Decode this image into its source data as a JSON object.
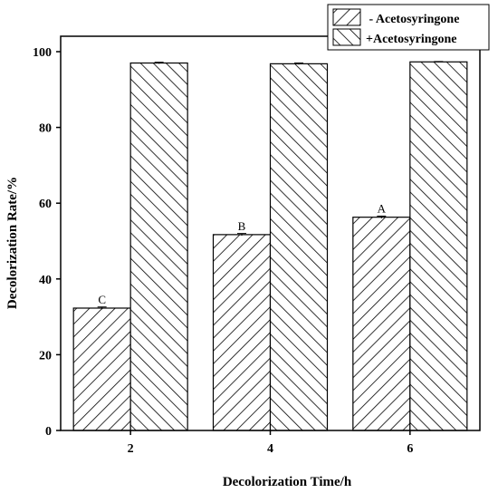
{
  "chart_data": {
    "type": "bar",
    "title": "",
    "xlabel": "Decolorization Time/h",
    "ylabel": "Decolorization Rate/%",
    "categories": [
      "2",
      "4",
      "6"
    ],
    "ylim": [
      0,
      100
    ],
    "yticks": [
      0,
      20,
      40,
      60,
      80,
      100
    ],
    "grid": false,
    "legend_position": "top-right",
    "series": [
      {
        "name": " - Acetosyringone",
        "values": [
          32.3,
          51.7,
          56.3
        ],
        "errors": [
          0.3,
          0.3,
          0.3
        ],
        "hatch": "forward-diagonal",
        "labels": [
          "C",
          "B",
          "A"
        ]
      },
      {
        "name": "+Acetosyringone",
        "values": [
          97.0,
          96.8,
          97.3
        ],
        "errors": [
          0.2,
          0.2,
          0.1
        ],
        "hatch": "backward-diagonal",
        "labels": [
          "",
          "",
          ""
        ]
      }
    ]
  }
}
